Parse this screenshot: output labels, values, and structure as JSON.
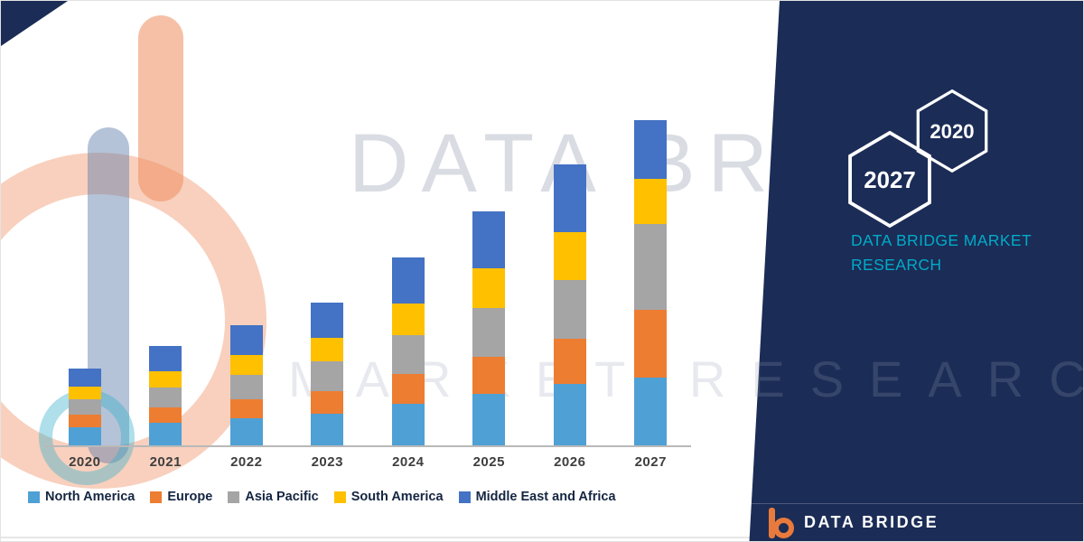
{
  "watermark": {
    "line1": "DATA BRIDGE",
    "line2": "MARKET RESEARCH"
  },
  "side_panel": {
    "hexagons": [
      {
        "label": "2027"
      },
      {
        "label": "2020"
      }
    ],
    "brand_line1": "DATA BRIDGE MARKET",
    "brand_line2": "RESEARCH"
  },
  "footer": {
    "brand": "DATA BRIDGE"
  },
  "colors": {
    "panel_navy": "#1b2c56",
    "accent_teal": "#00abc8",
    "logo_orange": "#e87a3c"
  },
  "chart_data": {
    "type": "bar",
    "stacked": true,
    "title": "",
    "xlabel": "",
    "ylabel": "",
    "categories": [
      "2020",
      "2021",
      "2022",
      "2023",
      "2024",
      "2025",
      "2026",
      "2027"
    ],
    "series": [
      {
        "name": "North America",
        "color": "#4fa0d5",
        "values": [
          5.6,
          6.9,
          8.3,
          9.7,
          12.8,
          15.8,
          18.9,
          20.8
        ]
      },
      {
        "name": "Europe",
        "color": "#ed7d31",
        "values": [
          3.9,
          4.7,
          5.8,
          6.9,
          9.2,
          11.4,
          13.9,
          20.8
        ]
      },
      {
        "name": "Asia Pacific",
        "color": "#a5a5a5",
        "values": [
          4.7,
          6.1,
          7.5,
          9.2,
          11.9,
          15.0,
          18.1,
          26.4
        ]
      },
      {
        "name": "South America",
        "color": "#ffc000",
        "values": [
          3.9,
          5.0,
          6.1,
          7.2,
          9.7,
          12.2,
          14.7,
          13.9
        ]
      },
      {
        "name": "Middle East and Africa",
        "color": "#4472c4",
        "values": [
          5.6,
          7.8,
          9.2,
          10.8,
          14.2,
          17.5,
          20.8,
          18.1
        ]
      }
    ],
    "ylim": [
      0,
      105
    ],
    "gridlines": false,
    "y_axis_visible": false,
    "legend_position": "bottom"
  }
}
